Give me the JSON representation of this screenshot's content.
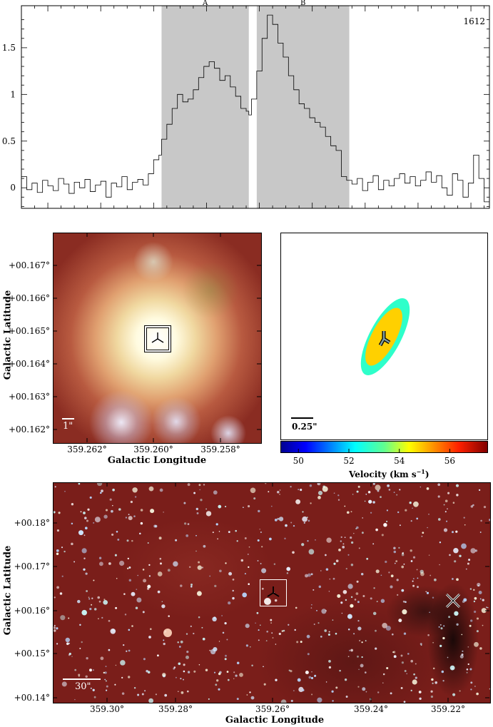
{
  "chart_data": [
    {
      "type": "line",
      "id": "spectrum",
      "title": "",
      "corner_label": "1612",
      "xlabel": "",
      "ylabel": "",
      "xlim": [
        45,
        62.7
      ],
      "ylim": [
        -0.22,
        1.95
      ],
      "xticks": [
        46,
        48,
        50,
        52,
        54,
        56,
        58,
        60,
        62
      ],
      "yticks": [
        0,
        0.5,
        1,
        1.5
      ],
      "ytick_labels": [
        "0",
        "0.5",
        "1",
        "1.5"
      ],
      "shaded_regions": [
        {
          "label": "A",
          "x0": 50.3,
          "x1": 53.6
        },
        {
          "label": "B",
          "x0": 53.9,
          "x1": 57.4
        }
      ],
      "step": true,
      "series": [
        {
          "x": [
            45.0,
            45.2,
            45.4,
            45.6,
            45.8,
            46.0,
            46.2,
            46.4,
            46.6,
            46.8,
            47.0,
            47.2,
            47.4,
            47.6,
            47.8,
            48.0,
            48.2,
            48.4,
            48.6,
            48.8,
            49.0,
            49.2,
            49.4,
            49.6,
            49.8,
            50.0,
            50.2,
            50.3,
            50.5,
            50.7,
            50.9,
            51.1,
            51.3,
            51.5,
            51.7,
            51.9,
            52.1,
            52.3,
            52.5,
            52.7,
            52.9,
            53.1,
            53.3,
            53.5,
            53.6,
            53.7,
            53.9,
            54.1,
            54.3,
            54.5,
            54.7,
            54.9,
            55.1,
            55.3,
            55.5,
            55.7,
            55.9,
            56.1,
            56.3,
            56.5,
            56.7,
            56.9,
            57.1,
            57.3,
            57.5,
            57.7,
            57.9,
            58.1,
            58.3,
            58.5,
            58.7,
            58.9,
            59.1,
            59.3,
            59.5,
            59.7,
            59.9,
            60.1,
            60.3,
            60.5,
            60.7,
            60.9,
            61.1,
            61.3,
            61.5,
            61.7,
            61.9,
            62.1,
            62.3,
            62.5,
            62.7
          ],
          "values": [
            0.12,
            -0.02,
            0.05,
            -0.05,
            0.08,
            0.02,
            -0.03,
            0.1,
            0.04,
            -0.06,
            0.06,
            0.0,
            0.09,
            -0.04,
            0.03,
            0.07,
            -0.1,
            0.05,
            0.01,
            0.12,
            -0.02,
            0.06,
            0.09,
            0.03,
            0.15,
            0.3,
            0.35,
            0.52,
            0.68,
            0.85,
            1.0,
            0.92,
            0.95,
            1.05,
            1.18,
            1.3,
            1.35,
            1.28,
            1.15,
            1.2,
            1.08,
            0.98,
            0.85,
            0.82,
            0.78,
            0.95,
            1.25,
            1.6,
            1.85,
            1.75,
            1.55,
            1.4,
            1.2,
            1.05,
            0.9,
            0.85,
            0.75,
            0.7,
            0.65,
            0.55,
            0.45,
            0.4,
            0.12,
            0.08,
            0.04,
            0.1,
            -0.03,
            0.06,
            0.13,
            -0.02,
            0.08,
            0.02,
            0.1,
            0.15,
            0.05,
            0.12,
            0.02,
            0.08,
            0.17,
            0.06,
            0.13,
            0.0,
            -0.08,
            0.15,
            0.08,
            -0.1,
            0.05,
            0.35,
            0.1,
            -0.15,
            0.05
          ]
        }
      ]
    },
    {
      "type": "heatmap",
      "id": "zoom-image",
      "xlabel": "Galactic Longitude",
      "ylabel": "Galactic Latitude",
      "xtick_labels": [
        "359.262°",
        "359.260°",
        "359.258°"
      ],
      "ytick_labels": [
        "+00.167°",
        "+00.166°",
        "+00.165°",
        "+00.164°",
        "+00.163°",
        "+00.162°"
      ],
      "scale_bar_label": "1\""
    },
    {
      "type": "scatter",
      "id": "velocity-map",
      "scale_bar_label": "0.25\"",
      "colorbar_label": "Velocity (km s",
      "colorbar_label_superscript": "−1",
      "colorbar_label_suffix": ")",
      "colorbar_range": [
        49.3,
        57.5
      ],
      "colorbar_ticks": [
        50,
        52,
        54,
        56
      ],
      "colorbar_ticklabels": [
        "50",
        "52",
        "54",
        "56"
      ],
      "ellipse_outer_velocity": 52.8,
      "ellipse_inner_velocity": 54.8
    },
    {
      "type": "heatmap",
      "id": "wide-field",
      "xlabel": "Galactic Longitude",
      "ylabel": "Galactic Latitude",
      "xtick_labels": [
        "359.30°",
        "359.28°",
        "359.26°",
        "359.24°",
        "359.22°"
      ],
      "ytick_labels": [
        "+00.18°",
        "+00.17°",
        "+00.16°",
        "+00.15°",
        "+00.14°"
      ],
      "scale_bar_label": "30\""
    }
  ],
  "colors": {
    "shade": "#c8c8c8",
    "field_bg": "#7a1e1a",
    "ellipse_outer": "#00f0f0",
    "ellipse_inner": "#e8f000"
  }
}
